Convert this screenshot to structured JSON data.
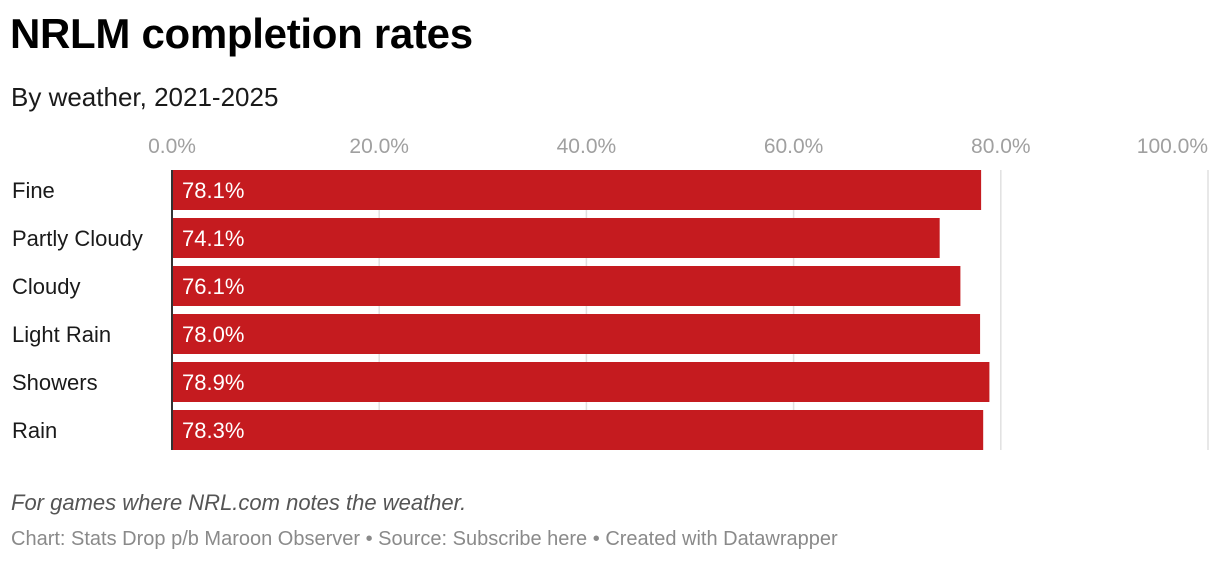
{
  "title": "NRLM completion rates",
  "subtitle": "By weather, 2021-2025",
  "note": "For games where NRL.com notes the weather.",
  "footer": {
    "chart_prefix": "Chart: ",
    "chart_credit": "Stats Drop p/b Maroon Observer",
    "separator": " • ",
    "source_prefix": "Source: ",
    "source_link": "Subscribe here",
    "created_with": "Created with Datawrapper"
  },
  "colors": {
    "bar": "#c51b1f",
    "bar_label": "#ffffff",
    "tick_label": "#a0a0a0",
    "grid": "#e0e0e0",
    "axis": "#333333"
  },
  "chart_data": {
    "type": "bar",
    "orientation": "horizontal",
    "title": "NRLM completion rates",
    "subtitle": "By weather, 2021-2025",
    "categories": [
      "Fine",
      "Partly Cloudy",
      "Cloudy",
      "Light Rain",
      "Showers",
      "Rain"
    ],
    "values": [
      78.1,
      74.1,
      76.1,
      78.0,
      78.9,
      78.3
    ],
    "value_labels": [
      "78.1%",
      "74.1%",
      "76.1%",
      "78.0%",
      "78.9%",
      "78.3%"
    ],
    "xlim": [
      0,
      100
    ],
    "ticks": [
      0,
      20,
      40,
      60,
      80,
      100
    ],
    "tick_labels": [
      "0.0%",
      "20.0%",
      "40.0%",
      "60.0%",
      "80.0%",
      "100.0%"
    ],
    "xlabel": "",
    "ylabel": "",
    "grid": true
  }
}
